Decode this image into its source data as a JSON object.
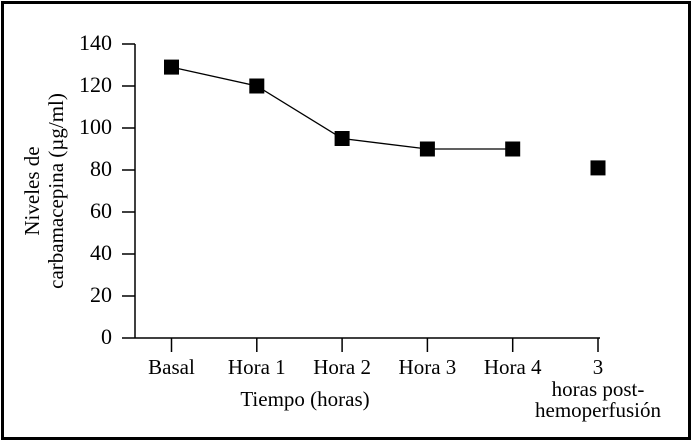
{
  "figure": {
    "background_color": "#ffffff",
    "frame_color": "#000000"
  },
  "chart_data": {
    "type": "line",
    "title": "",
    "categories": [
      "Basal",
      "Hora 1",
      "Hora 2",
      "Hora 3",
      "Hora 4",
      "3 horas post-hemoperfusión"
    ],
    "xtick_labels": [
      "Basal",
      "Hora 1",
      "Hora 2",
      "Hora 3",
      "Hora 4",
      "3"
    ],
    "last_tick_sublines": [
      "horas post-",
      "hemoperfusión"
    ],
    "values": [
      129,
      120,
      95,
      90,
      90,
      81
    ],
    "connected_point_count": 5,
    "marker": "filled-square",
    "marker_color": "#000000",
    "line_color": "#000000",
    "xlabel": "Tiempo (horas)",
    "ylabel": "Niveles de carbamacepina (µg/ml)",
    "ylabel_lines": [
      "Niveles de",
      "carbamacepina (µg/ml)"
    ],
    "ylim": [
      0,
      140
    ],
    "ytick_step": 20,
    "ytick_labels": [
      "0",
      "20",
      "40",
      "60",
      "80",
      "100",
      "120",
      "140"
    ],
    "grid": false,
    "legend": "none"
  }
}
